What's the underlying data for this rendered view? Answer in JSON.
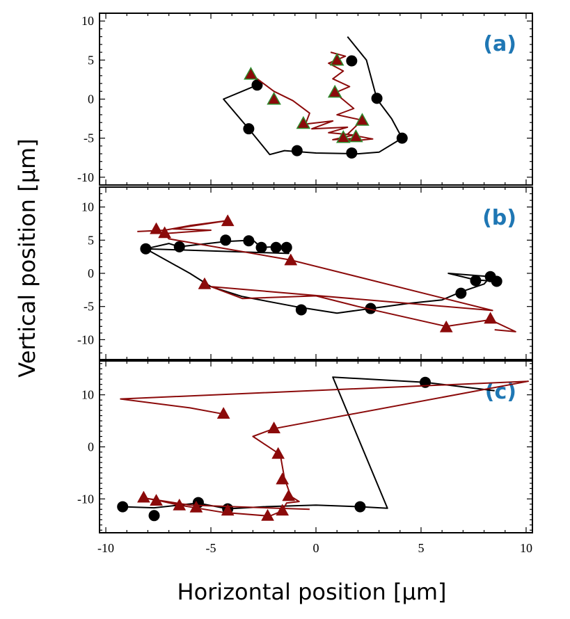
{
  "chart_data": {
    "type": "line",
    "xlabel": "Horizontal position [µm]",
    "ylabel": "Vertical position [µm]",
    "xlim": [
      -10.3,
      10.3
    ],
    "x_ticks": [
      -10,
      -5,
      0,
      5,
      10
    ],
    "x_tick_labels": [
      "-10",
      "-5",
      "0",
      "5",
      "10"
    ],
    "colors": {
      "black_series": "#000000",
      "red_series": "#8b0a0a",
      "triangle_edge": "#2e8b2e",
      "panel_label": "#1f77b4"
    },
    "panels": [
      {
        "label": "(a)",
        "ylim": [
          -11,
          11
        ],
        "y_ticks": [
          10,
          5,
          0,
          -5,
          -10
        ],
        "y_tick_labels": [
          "10",
          "5",
          "0",
          "-5",
          "-10"
        ],
        "series": [
          {
            "name": "black",
            "color": "#000000",
            "marker": "circle",
            "line": [
              [
                1.5,
                8
              ],
              [
                2.4,
                5
              ],
              [
                2.9,
                0
              ],
              [
                3.6,
                -2.5
              ],
              [
                4.1,
                -5
              ],
              [
                3.0,
                -6.8
              ],
              [
                2.0,
                -7
              ],
              [
                0,
                -6.9
              ],
              [
                -1.5,
                -6.6
              ],
              [
                -2.2,
                -7.1
              ],
              [
                -3.2,
                -3.8
              ],
              [
                -4.4,
                0
              ],
              [
                -2.8,
                1.8
              ]
            ],
            "markers": [
              [
                1.7,
                4.9
              ],
              [
                2.9,
                0.1
              ],
              [
                4.1,
                -5
              ],
              [
                1.7,
                -6.9
              ],
              [
                -0.9,
                -6.6
              ],
              [
                -3.2,
                -3.8
              ],
              [
                -2.8,
                1.8
              ]
            ]
          },
          {
            "name": "red",
            "color": "#8b0a0a",
            "marker": "triangle",
            "line": [
              [
                -3.1,
                3.2
              ],
              [
                -2.0,
                1.0
              ],
              [
                -1.1,
                -0.2
              ],
              [
                -0.3,
                -1.8
              ],
              [
                -0.5,
                -3.2
              ],
              [
                0.8,
                -2.8
              ],
              [
                -0.2,
                -3.8
              ],
              [
                1.5,
                -3.6
              ],
              [
                0.6,
                -4.3
              ],
              [
                1.8,
                -4.6
              ],
              [
                0.8,
                -5.2
              ],
              [
                2.0,
                -5.0
              ],
              [
                1.2,
                -5.5
              ],
              [
                2.7,
                -5.1
              ],
              [
                1.5,
                -4.5
              ],
              [
                2.2,
                -2.7
              ],
              [
                1.0,
                -2.0
              ],
              [
                1.8,
                -1.2
              ],
              [
                0.9,
                0.8
              ],
              [
                1.6,
                1.6
              ],
              [
                0.8,
                2.6
              ],
              [
                1.3,
                3.6
              ],
              [
                0.6,
                4.6
              ],
              [
                1.4,
                5.5
              ],
              [
                0.7,
                6.0
              ]
            ],
            "markers": [
              [
                -3.1,
                3.2
              ],
              [
                -2.0,
                0.0
              ],
              [
                -0.6,
                -3.1
              ],
              [
                1.0,
                5.0
              ],
              [
                0.9,
                0.9
              ],
              [
                2.2,
                -2.7
              ],
              [
                1.3,
                -4.9
              ],
              [
                1.9,
                -4.8
              ]
            ]
          }
        ]
      },
      {
        "label": "(b)",
        "ylim": [
          -13,
          13
        ],
        "y_ticks": [
          10,
          5,
          0,
          -5,
          -10
        ],
        "y_tick_labels": [
          "10",
          "5",
          "0",
          "-5",
          "-10"
        ],
        "series": [
          {
            "name": "black",
            "color": "#000000",
            "marker": "circle",
            "line": [
              [
                -8.1,
                3.7
              ],
              [
                -7.0,
                4.5
              ],
              [
                -6.5,
                4.0
              ],
              [
                -4.3,
                4.8
              ],
              [
                -3.0,
                5.0
              ],
              [
                -2.6,
                3.9
              ],
              [
                -1.9,
                4.0
              ],
              [
                -1.3,
                3.9
              ],
              [
                -1.3,
                3.0
              ],
              [
                -8.1,
                3.7
              ],
              [
                -6.0,
                0
              ],
              [
                -5.0,
                -2.0
              ],
              [
                -3.5,
                -3.5
              ],
              [
                -1.0,
                -5.0
              ],
              [
                1.0,
                -6.0
              ],
              [
                2.6,
                -5.3
              ],
              [
                4.5,
                -4.5
              ],
              [
                6.0,
                -4.0
              ],
              [
                6.9,
                -2.8
              ],
              [
                8.0,
                -1.6
              ],
              [
                8.3,
                -0.5
              ],
              [
                6.3,
                0
              ],
              [
                7.6,
                -1.0
              ],
              [
                8.6,
                -1.2
              ]
            ],
            "markers": [
              [
                -8.1,
                3.7
              ],
              [
                -6.5,
                4.0
              ],
              [
                -4.3,
                5.0
              ],
              [
                -3.2,
                4.9
              ],
              [
                -2.6,
                3.9
              ],
              [
                -1.9,
                3.9
              ],
              [
                -1.4,
                3.9
              ],
              [
                -0.7,
                -5.5
              ],
              [
                2.6,
                -5.3
              ],
              [
                6.9,
                -3.0
              ],
              [
                7.6,
                -1.1
              ],
              [
                8.6,
                -1.2
              ],
              [
                8.3,
                -0.5
              ]
            ]
          },
          {
            "name": "red",
            "color": "#8b0a0a",
            "marker": "triangle",
            "line": [
              [
                -8.5,
                6.3
              ],
              [
                -7.2,
                6.5
              ],
              [
                -6.0,
                7.2
              ],
              [
                -4.1,
                8.0
              ],
              [
                -6.8,
                6.7
              ],
              [
                -5.0,
                6.5
              ],
              [
                -7.2,
                6.0
              ],
              [
                -7.0,
                5.2
              ],
              [
                -1.2,
                2.0
              ],
              [
                8.4,
                -5.6
              ],
              [
                -5.0,
                -2.0
              ],
              [
                -3.5,
                -3.8
              ],
              [
                0,
                -3.4
              ],
              [
                2.0,
                -5.0
              ],
              [
                6.2,
                -8.0
              ],
              [
                8.3,
                -7.0
              ],
              [
                9.5,
                -8.8
              ],
              [
                8.5,
                -8.5
              ]
            ],
            "markers": [
              [
                -7.6,
                6.7
              ],
              [
                -7.2,
                6.1
              ],
              [
                -4.2,
                7.9
              ],
              [
                -1.2,
                2.0
              ],
              [
                -5.3,
                -1.6
              ],
              [
                6.2,
                -8.1
              ],
              [
                8.3,
                -6.8
              ]
            ]
          }
        ]
      },
      {
        "label": "(c)",
        "ylim": [
          -16.5,
          16.5
        ],
        "y_ticks": [
          10,
          0,
          -10
        ],
        "y_tick_labels": [
          "10",
          "0",
          "-10"
        ],
        "series": [
          {
            "name": "black",
            "color": "#000000",
            "marker": "circle",
            "line": [
              [
                -9.2,
                -11.5
              ],
              [
                -7.7,
                -11.7
              ],
              [
                -5.6,
                -10.8
              ],
              [
                -4.2,
                -11.9
              ],
              [
                -2.5,
                -11.5
              ],
              [
                0,
                -11.2
              ],
              [
                2.1,
                -11.5
              ],
              [
                3.4,
                -11.8
              ],
              [
                0.8,
                13.4
              ],
              [
                5.2,
                12.4
              ],
              [
                8.5,
                10.8
              ]
            ],
            "markers": [
              [
                -9.2,
                -11.5
              ],
              [
                -7.7,
                -13.2
              ],
              [
                -5.6,
                -10.7
              ],
              [
                -4.2,
                -11.9
              ],
              [
                2.1,
                -11.5
              ],
              [
                5.2,
                12.4
              ]
            ]
          },
          {
            "name": "red",
            "color": "#8b0a0a",
            "marker": "triangle",
            "line": [
              [
                -4.4,
                6.3
              ],
              [
                -6.0,
                7.5
              ],
              [
                -9.3,
                9.2
              ],
              [
                10.1,
                12.6
              ],
              [
                -2.0,
                3.5
              ],
              [
                -3.0,
                2.0
              ],
              [
                -1.7,
                -1.5
              ],
              [
                -1.5,
                -6.0
              ],
              [
                -1.2,
                -9.5
              ],
              [
                -0.8,
                -10.5
              ],
              [
                -1.4,
                -10.8
              ],
              [
                -1.6,
                -12.3
              ],
              [
                -2.2,
                -13.3
              ],
              [
                -4.4,
                -12.6
              ],
              [
                -6.5,
                -11.2
              ],
              [
                -7.4,
                -10.4
              ],
              [
                -8.2,
                -9.8
              ],
              [
                -6.0,
                -11.2
              ],
              [
                -0.3,
                -12.0
              ]
            ],
            "markers": [
              [
                -4.4,
                6.4
              ],
              [
                -2.0,
                3.6
              ],
              [
                -1.8,
                -1.3
              ],
              [
                -1.6,
                -6.2
              ],
              [
                -1.3,
                -9.4
              ],
              [
                -1.6,
                -12.2
              ],
              [
                -2.3,
                -13.2
              ],
              [
                -4.2,
                -12.2
              ],
              [
                -5.7,
                -11.6
              ],
              [
                -6.5,
                -11.2
              ],
              [
                -7.6,
                -10.3
              ],
              [
                -8.2,
                -9.7
              ]
            ]
          }
        ]
      }
    ]
  }
}
